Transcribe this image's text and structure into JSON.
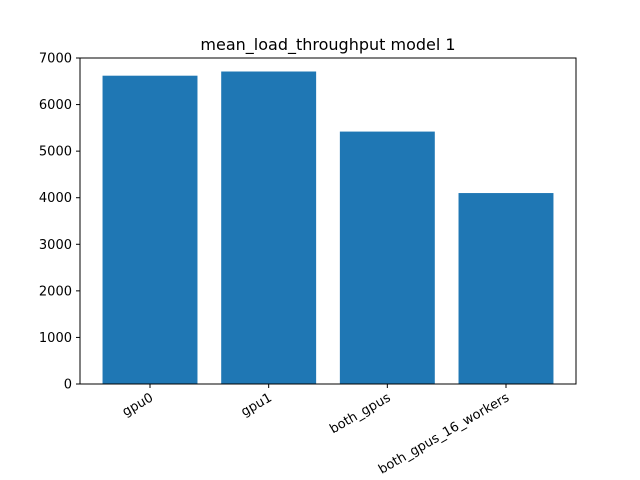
{
  "chart_data": {
    "type": "bar",
    "title": "mean_load_throughput model 1",
    "xlabel": "",
    "ylabel": "",
    "categories": [
      "gpu0",
      "gpu1",
      "both_gpus",
      "both_gpus_16_workers"
    ],
    "values": [
      6620,
      6710,
      5420,
      4100
    ],
    "ylim": [
      0,
      7000
    ],
    "yticks": [
      0,
      1000,
      2000,
      3000,
      4000,
      5000,
      6000,
      7000
    ],
    "bar_color": "#1f77b4",
    "grid": false,
    "legend": "none",
    "xtick_rotation": 30
  }
}
